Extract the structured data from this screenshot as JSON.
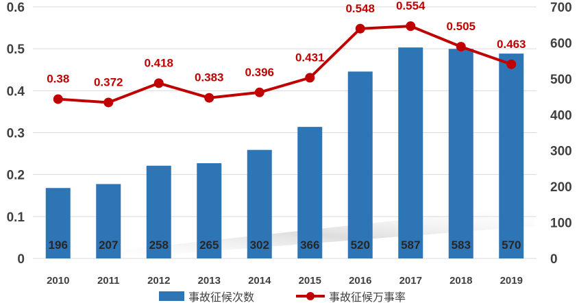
{
  "chart_data": {
    "type": "bar+line",
    "categories": [
      "2010",
      "2011",
      "2012",
      "2013",
      "2014",
      "2015",
      "2016",
      "2017",
      "2018",
      "2019"
    ],
    "series": [
      {
        "name": "事故征候次数",
        "type": "bar",
        "axis": "right",
        "color": "#2e75b6",
        "values": [
          196,
          207,
          258,
          265,
          302,
          366,
          520,
          587,
          583,
          570
        ]
      },
      {
        "name": "事故征候万事率",
        "type": "line",
        "axis": "left",
        "color": "#c00000",
        "values": [
          0.38,
          0.372,
          0.418,
          0.383,
          0.396,
          0.431,
          0.548,
          0.554,
          0.505,
          0.463
        ]
      }
    ],
    "left_axis": {
      "range": [
        0,
        0.6
      ],
      "ticks": [
        "0",
        "0.1",
        "0.2",
        "0.3",
        "0.4",
        "0.5",
        "0.6"
      ]
    },
    "right_axis": {
      "range": [
        0,
        700
      ],
      "ticks": [
        "0",
        "100",
        "200",
        "300",
        "400",
        "500",
        "600",
        "700"
      ]
    },
    "grid": true,
    "legend": "bottom"
  }
}
